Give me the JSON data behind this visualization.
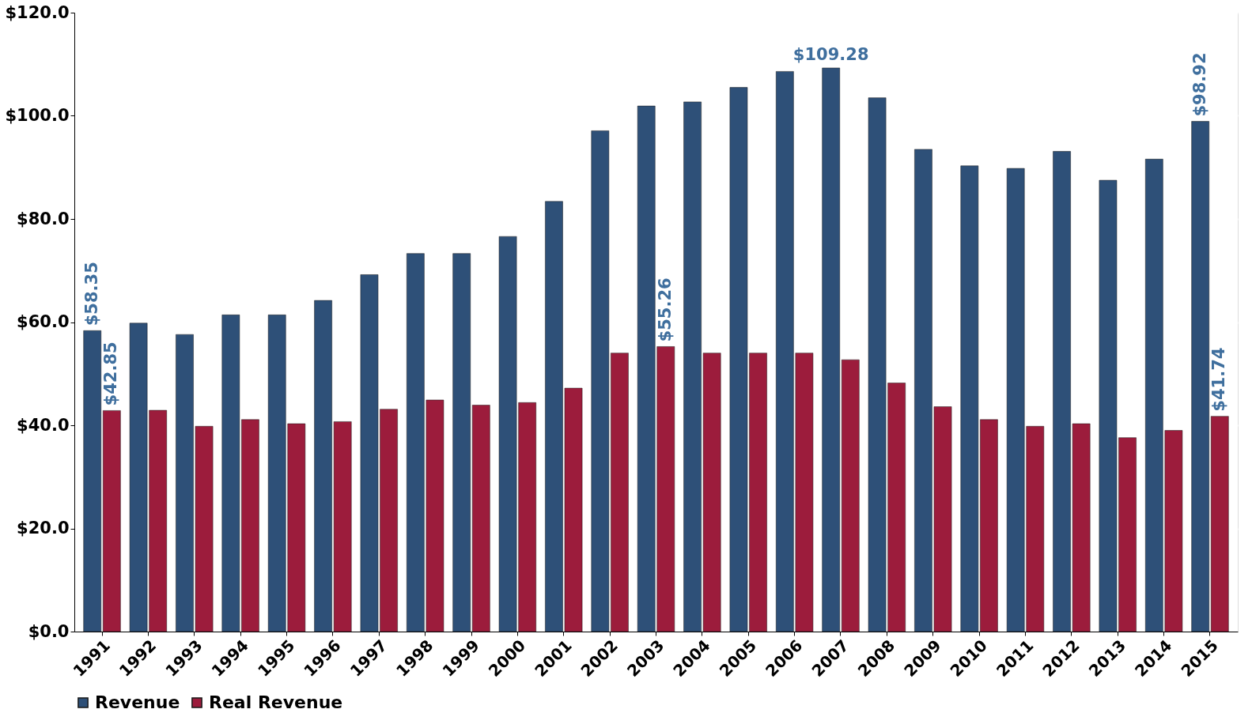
{
  "chart_data": {
    "type": "bar",
    "categories": [
      "1991",
      "1992",
      "1993",
      "1994",
      "1995",
      "1996",
      "1997",
      "1998",
      "1999",
      "2000",
      "2001",
      "2002",
      "2003",
      "2004",
      "2005",
      "2006",
      "2007",
      "2008",
      "2009",
      "2010",
      "2011",
      "2012",
      "2013",
      "2014",
      "2015"
    ],
    "series": [
      {
        "name": "Revenue",
        "color": "#2e5078",
        "values": [
          58.35,
          59.8,
          57.6,
          61.4,
          61.4,
          64.2,
          69.2,
          73.3,
          73.3,
          76.6,
          83.4,
          97.1,
          101.9,
          102.7,
          105.5,
          108.6,
          109.28,
          103.5,
          93.5,
          90.3,
          89.8,
          93.1,
          87.5,
          91.6,
          98.92
        ]
      },
      {
        "name": "Real Revenue",
        "color": "#9c1c3c",
        "values": [
          42.85,
          42.9,
          39.8,
          41.1,
          40.3,
          40.7,
          43.1,
          44.9,
          43.9,
          44.4,
          47.2,
          54.0,
          55.26,
          54.0,
          54.0,
          54.0,
          52.7,
          48.2,
          43.6,
          41.1,
          39.8,
          40.3,
          37.6,
          39.0,
          41.74
        ]
      }
    ],
    "ylim": [
      0,
      120
    ],
    "yticks": [
      {
        "value": 0,
        "label": "$0.0"
      },
      {
        "value": 20,
        "label": "$20.0"
      },
      {
        "value": 40,
        "label": "$40.0"
      },
      {
        "value": 60,
        "label": "$60.0"
      },
      {
        "value": 80,
        "label": "$80.0"
      },
      {
        "value": 100,
        "label": "$100.0"
      },
      {
        "value": 120,
        "label": "$120.0"
      }
    ],
    "annotations": [
      {
        "text": "$58.35",
        "x": "1991",
        "y": 58.35
      },
      {
        "text": "$42.85",
        "x": "1991",
        "y": 42.85
      },
      {
        "text": "$55.26",
        "x": "2003",
        "y": 55.26
      },
      {
        "text": "$109.28",
        "x": "2007",
        "y": 109.28
      },
      {
        "text": "$98.92",
        "x": "2015",
        "y": 98.92
      },
      {
        "text": "$41.74",
        "x": "2015",
        "y": 41.74
      }
    ],
    "grid": "y",
    "legend": "bottom"
  }
}
